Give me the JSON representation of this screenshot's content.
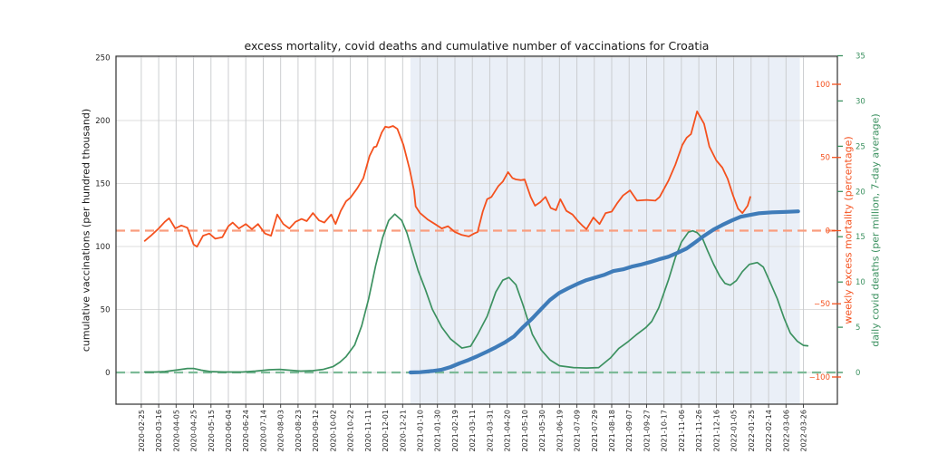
{
  "title": "excess mortality, covid deaths and cumulative number of vaccinations for Croatia",
  "chart_data": {
    "type": "line",
    "title": "excess mortality, covid deaths and cumulative number of vaccinations for Croatia",
    "x_range": [
      "2020-01-27",
      "2022-05-04"
    ],
    "x_ticks": [
      "2020-02-25",
      "2020-03-16",
      "2020-04-05",
      "2020-04-25",
      "2020-05-15",
      "2020-06-04",
      "2020-06-24",
      "2020-07-14",
      "2020-08-03",
      "2020-08-23",
      "2020-09-12",
      "2020-10-02",
      "2020-10-22",
      "2020-11-11",
      "2020-12-01",
      "2020-12-21",
      "2021-01-10",
      "2021-01-30",
      "2021-02-19",
      "2021-03-11",
      "2021-03-31",
      "2021-04-20",
      "2021-05-10",
      "2021-05-30",
      "2021-06-19",
      "2021-07-09",
      "2021-07-29",
      "2021-08-18",
      "2021-09-07",
      "2021-09-27",
      "2021-10-17",
      "2021-11-06",
      "2021-11-26",
      "2021-12-16",
      "2022-01-05",
      "2022-01-25",
      "2022-02-14",
      "2022-03-06",
      "2022-03-26"
    ],
    "grid": {
      "v_color": "#c7c9cc",
      "h_color": "#dedede"
    },
    "shaded_region": {
      "start": "2020-12-30",
      "end": "2022-03-22",
      "color": "#eaeff7"
    },
    "y_axes": {
      "vaccinations": {
        "label": "cumulative vaccinations (per hundred thousand)",
        "side": "left",
        "color": "#262626",
        "label_color": "#1a1a1a",
        "range": [
          -25.2,
          251.1
        ],
        "ticks": [
          0,
          50,
          100,
          150,
          200,
          250
        ]
      },
      "mortality": {
        "label": "weekly excess mortality (percentage)",
        "side": "right",
        "color": "#f4511e",
        "label_color": "#f4511e",
        "range": [
          -118.6,
          119.2
        ],
        "ticks": [
          100,
          50,
          0,
          -50,
          -100
        ]
      },
      "deaths": {
        "label": "daily covid deaths (per million, 7-day average)",
        "side": "right-outer",
        "color": "#3c9160",
        "label_color": "#3c9160",
        "range": [
          -3.5,
          34.95
        ],
        "ticks": [
          0,
          5,
          10,
          15,
          20,
          25,
          30,
          35
        ]
      }
    },
    "reference_lines": [
      {
        "axis": "mortality",
        "value": 0,
        "color": "#f99d7e",
        "style": "dashed"
      },
      {
        "axis": "deaths",
        "value": 0,
        "color": "#7cba97",
        "style": "dashed"
      }
    ],
    "series": [
      {
        "name": "weekly excess mortality",
        "axis": "mortality",
        "color": "#f4511e",
        "width": 1.8,
        "points": [
          [
            "2020-02-29",
            -7
          ],
          [
            "2020-03-07",
            -3.5
          ],
          [
            "2020-03-16",
            1.5
          ],
          [
            "2020-03-23",
            6
          ],
          [
            "2020-03-28",
            8.5
          ],
          [
            "2020-04-04",
            1.5
          ],
          [
            "2020-04-11",
            3.5
          ],
          [
            "2020-04-18",
            2
          ],
          [
            "2020-04-25",
            -9.5
          ],
          [
            "2020-04-29",
            -11
          ],
          [
            "2020-05-06",
            -3.5
          ],
          [
            "2020-05-13",
            -2
          ],
          [
            "2020-05-20",
            -5.5
          ],
          [
            "2020-05-28",
            -4.5
          ],
          [
            "2020-06-04",
            3
          ],
          [
            "2020-06-09",
            5.5
          ],
          [
            "2020-06-16",
            1.5
          ],
          [
            "2020-06-24",
            4.5
          ],
          [
            "2020-07-01",
            1
          ],
          [
            "2020-07-08",
            4.5
          ],
          [
            "2020-07-16",
            -2
          ],
          [
            "2020-07-23",
            -3.5
          ],
          [
            "2020-07-30",
            11
          ],
          [
            "2020-08-06",
            4.5
          ],
          [
            "2020-08-13",
            1.5
          ],
          [
            "2020-08-20",
            6
          ],
          [
            "2020-08-27",
            8
          ],
          [
            "2020-09-02",
            6.5
          ],
          [
            "2020-09-09",
            12
          ],
          [
            "2020-09-16",
            7
          ],
          [
            "2020-09-22",
            5.5
          ],
          [
            "2020-09-30",
            11
          ],
          [
            "2020-10-05",
            4.5
          ],
          [
            "2020-10-11",
            13.5
          ],
          [
            "2020-10-17",
            20
          ],
          [
            "2020-10-22",
            22.5
          ],
          [
            "2020-10-30",
            29
          ],
          [
            "2020-11-06",
            36
          ],
          [
            "2020-11-13",
            51
          ],
          [
            "2020-11-18",
            57
          ],
          [
            "2020-11-21",
            57.5
          ],
          [
            "2020-11-27",
            67
          ],
          [
            "2020-12-01",
            71
          ],
          [
            "2020-12-05",
            70.5
          ],
          [
            "2020-12-10",
            71.5
          ],
          [
            "2020-12-15",
            69.5
          ],
          [
            "2020-12-22",
            58.5
          ],
          [
            "2020-12-29",
            42
          ],
          [
            "2021-01-03",
            27.5
          ],
          [
            "2021-01-05",
            16.5
          ],
          [
            "2021-01-10",
            12
          ],
          [
            "2021-01-19",
            7.5
          ],
          [
            "2021-01-27",
            4.5
          ],
          [
            "2021-02-04",
            1.5
          ],
          [
            "2021-02-11",
            3
          ],
          [
            "2021-02-19",
            -1
          ],
          [
            "2021-02-27",
            -3
          ],
          [
            "2021-03-07",
            -4
          ],
          [
            "2021-03-13",
            -2
          ],
          [
            "2021-03-17",
            -1
          ],
          [
            "2021-03-23",
            13
          ],
          [
            "2021-03-28",
            21.5
          ],
          [
            "2021-04-02",
            23
          ],
          [
            "2021-04-10",
            30.5
          ],
          [
            "2021-04-15",
            33.5
          ],
          [
            "2021-04-21",
            40
          ],
          [
            "2021-04-26",
            36
          ],
          [
            "2021-04-30",
            35
          ],
          [
            "2021-05-06",
            34.5
          ],
          [
            "2021-05-10",
            35
          ],
          [
            "2021-05-17",
            23
          ],
          [
            "2021-05-22",
            17
          ],
          [
            "2021-05-28",
            19.5
          ],
          [
            "2021-06-03",
            23
          ],
          [
            "2021-06-09",
            15.5
          ],
          [
            "2021-06-15",
            14
          ],
          [
            "2021-06-20",
            21.5
          ],
          [
            "2021-06-27",
            13.5
          ],
          [
            "2021-07-04",
            11
          ],
          [
            "2021-07-11",
            6
          ],
          [
            "2021-07-16",
            3
          ],
          [
            "2021-07-20",
            1
          ],
          [
            "2021-07-28",
            9
          ],
          [
            "2021-08-04",
            4.5
          ],
          [
            "2021-08-11",
            12
          ],
          [
            "2021-08-18",
            13
          ],
          [
            "2021-08-24",
            18.5
          ],
          [
            "2021-08-31",
            24
          ],
          [
            "2021-09-08",
            27.5
          ],
          [
            "2021-09-16",
            20.5
          ],
          [
            "2021-09-27",
            21
          ],
          [
            "2021-10-07",
            20.5
          ],
          [
            "2021-10-12",
            23
          ],
          [
            "2021-10-22",
            34
          ],
          [
            "2021-10-30",
            45
          ],
          [
            "2021-11-07",
            58.5
          ],
          [
            "2021-11-12",
            63.5
          ],
          [
            "2021-11-17",
            66
          ],
          [
            "2021-11-24",
            81.5
          ],
          [
            "2021-12-02",
            73
          ],
          [
            "2021-12-08",
            57.5
          ],
          [
            "2021-12-16",
            48
          ],
          [
            "2021-12-23",
            43
          ],
          [
            "2021-12-29",
            35.5
          ],
          [
            "2022-01-04",
            24.5
          ],
          [
            "2022-01-10",
            15
          ],
          [
            "2022-01-15",
            12
          ],
          [
            "2022-01-21",
            17
          ],
          [
            "2022-01-24",
            23
          ]
        ]
      },
      {
        "name": "daily covid deaths",
        "axis": "deaths",
        "color": "#3c9160",
        "width": 1.7,
        "points": [
          [
            "2020-02-29",
            0.05
          ],
          [
            "2020-03-13",
            0.05
          ],
          [
            "2020-03-23",
            0.1
          ],
          [
            "2020-04-08",
            0.3
          ],
          [
            "2020-04-18",
            0.45
          ],
          [
            "2020-04-25",
            0.45
          ],
          [
            "2020-05-04",
            0.25
          ],
          [
            "2020-05-14",
            0.1
          ],
          [
            "2020-05-30",
            0.05
          ],
          [
            "2020-06-20",
            0.05
          ],
          [
            "2020-07-05",
            0.15
          ],
          [
            "2020-07-21",
            0.3
          ],
          [
            "2020-08-02",
            0.35
          ],
          [
            "2020-08-13",
            0.25
          ],
          [
            "2020-08-26",
            0.15
          ],
          [
            "2020-09-09",
            0.2
          ],
          [
            "2020-09-21",
            0.35
          ],
          [
            "2020-10-02",
            0.65
          ],
          [
            "2020-10-10",
            1.15
          ],
          [
            "2020-10-17",
            1.75
          ],
          [
            "2020-10-27",
            3.05
          ],
          [
            "2020-11-04",
            5.15
          ],
          [
            "2020-11-12",
            8.15
          ],
          [
            "2020-11-20",
            11.8
          ],
          [
            "2020-11-28",
            14.9
          ],
          [
            "2020-12-05",
            16.8
          ],
          [
            "2020-12-12",
            17.5
          ],
          [
            "2020-12-20",
            16.8
          ],
          [
            "2020-12-26",
            15.4
          ],
          [
            "2021-01-01",
            13.4
          ],
          [
            "2021-01-08",
            11.2
          ],
          [
            "2021-01-16",
            9.2
          ],
          [
            "2021-01-24",
            7.0
          ],
          [
            "2021-02-04",
            5.0
          ],
          [
            "2021-02-14",
            3.7
          ],
          [
            "2021-02-27",
            2.7
          ],
          [
            "2021-03-09",
            2.9
          ],
          [
            "2021-03-17",
            4.2
          ],
          [
            "2021-03-28",
            6.2
          ],
          [
            "2021-04-07",
            8.9
          ],
          [
            "2021-04-15",
            10.2
          ],
          [
            "2021-04-22",
            10.5
          ],
          [
            "2021-04-30",
            9.7
          ],
          [
            "2021-05-08",
            7.5
          ],
          [
            "2021-05-19",
            4.2
          ],
          [
            "2021-05-29",
            2.5
          ],
          [
            "2021-06-08",
            1.4
          ],
          [
            "2021-06-19",
            0.75
          ],
          [
            "2021-07-05",
            0.55
          ],
          [
            "2021-07-20",
            0.5
          ],
          [
            "2021-08-03",
            0.55
          ],
          [
            "2021-08-17",
            1.65
          ],
          [
            "2021-08-26",
            2.65
          ],
          [
            "2021-09-05",
            3.35
          ],
          [
            "2021-09-15",
            4.15
          ],
          [
            "2021-09-26",
            4.95
          ],
          [
            "2021-10-03",
            5.65
          ],
          [
            "2021-10-11",
            7.15
          ],
          [
            "2021-10-22",
            10.2
          ],
          [
            "2021-10-30",
            12.7
          ],
          [
            "2021-11-06",
            14.4
          ],
          [
            "2021-11-14",
            15.5
          ],
          [
            "2021-11-19",
            15.65
          ],
          [
            "2021-11-24",
            15.45
          ],
          [
            "2021-11-30",
            14.85
          ],
          [
            "2021-12-06",
            13.45
          ],
          [
            "2021-12-13",
            11.95
          ],
          [
            "2021-12-20",
            10.65
          ],
          [
            "2021-12-26",
            9.85
          ],
          [
            "2022-01-01",
            9.65
          ],
          [
            "2022-01-08",
            10.15
          ],
          [
            "2022-01-15",
            11.15
          ],
          [
            "2022-01-23",
            11.95
          ],
          [
            "2022-02-01",
            12.15
          ],
          [
            "2022-02-08",
            11.65
          ],
          [
            "2022-02-15",
            10.15
          ],
          [
            "2022-02-24",
            8.15
          ],
          [
            "2022-03-04",
            5.95
          ],
          [
            "2022-03-11",
            4.35
          ],
          [
            "2022-03-19",
            3.45
          ],
          [
            "2022-03-26",
            3.0
          ],
          [
            "2022-03-31",
            2.95
          ]
        ]
      },
      {
        "name": "cumulative vaccinations",
        "axis": "vaccinations",
        "color": "#3f7cb9",
        "width": 4.2,
        "points": [
          [
            "2020-12-30",
            0
          ],
          [
            "2021-01-10",
            0.2
          ],
          [
            "2021-01-24",
            1.1
          ],
          [
            "2021-02-04",
            2.2
          ],
          [
            "2021-02-14",
            4.3
          ],
          [
            "2021-02-24",
            7.2
          ],
          [
            "2021-03-07",
            10
          ],
          [
            "2021-03-17",
            13
          ],
          [
            "2021-03-28",
            16.5
          ],
          [
            "2021-04-07",
            20
          ],
          [
            "2021-04-17",
            23.7
          ],
          [
            "2021-04-28",
            28.7
          ],
          [
            "2021-05-08",
            35.9
          ],
          [
            "2021-05-19",
            43
          ],
          [
            "2021-05-29",
            50.3
          ],
          [
            "2021-06-08",
            57.5
          ],
          [
            "2021-06-19",
            63.2
          ],
          [
            "2021-06-29",
            66.8
          ],
          [
            "2021-07-10",
            70.4
          ],
          [
            "2021-07-20",
            73.3
          ],
          [
            "2021-07-30",
            75.4
          ],
          [
            "2021-08-10",
            77.6
          ],
          [
            "2021-08-20",
            80.5
          ],
          [
            "2021-08-31",
            81.9
          ],
          [
            "2021-09-10",
            84
          ],
          [
            "2021-09-20",
            85.5
          ],
          [
            "2021-10-01",
            87.6
          ],
          [
            "2021-10-11",
            89.8
          ],
          [
            "2021-10-22",
            91.9
          ],
          [
            "2021-11-01",
            94.8
          ],
          [
            "2021-11-12",
            98.4
          ],
          [
            "2021-11-22",
            103.4
          ],
          [
            "2021-12-02",
            108.5
          ],
          [
            "2021-12-13",
            113.5
          ],
          [
            "2021-12-23",
            117.1
          ],
          [
            "2022-01-03",
            120.7
          ],
          [
            "2022-01-13",
            123.6
          ],
          [
            "2022-01-23",
            125
          ],
          [
            "2022-02-03",
            126.4
          ],
          [
            "2022-02-18",
            127.1
          ],
          [
            "2022-03-06",
            127.5
          ],
          [
            "2022-03-20",
            127.9
          ]
        ]
      }
    ]
  }
}
